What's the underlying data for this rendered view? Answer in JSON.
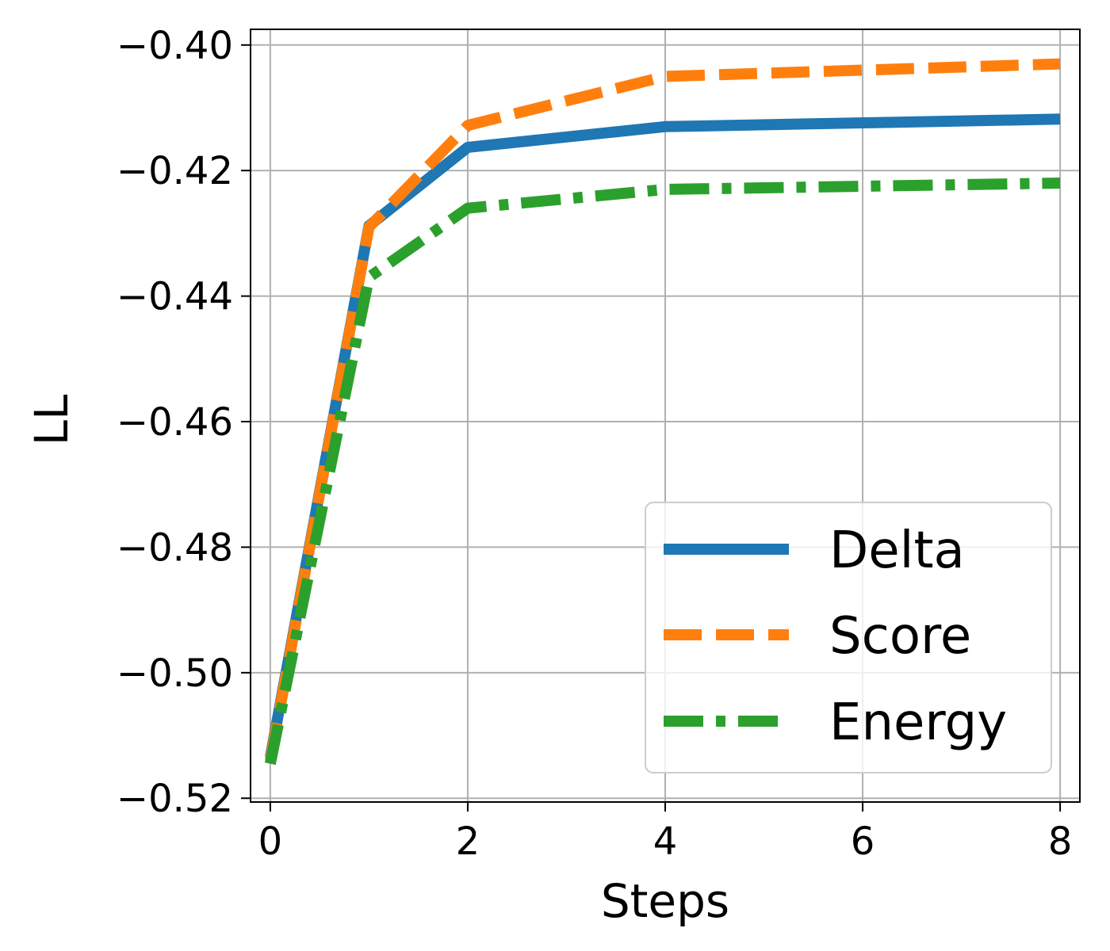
{
  "chart_data": {
    "type": "line",
    "title": "",
    "xlabel": "Steps",
    "ylabel": "LL",
    "xlim": [
      -0.2,
      8.2
    ],
    "ylim": [
      -0.5206,
      -0.3975
    ],
    "xticks": [
      0,
      2,
      4,
      6,
      8
    ],
    "yticks": [
      -0.52,
      -0.5,
      -0.48,
      -0.46,
      -0.44,
      -0.42,
      -0.4
    ],
    "x_tick_labels": [
      "0",
      "2",
      "4",
      "6",
      "8"
    ],
    "y_tick_labels": [
      "−0.52",
      "−0.50",
      "−0.48",
      "−0.46",
      "−0.44",
      "−0.42",
      "−0.40"
    ],
    "grid": true,
    "legend_position": "lower-right",
    "series": [
      {
        "name": "Delta",
        "color": "#1f77b4",
        "style": "solid",
        "x": [
          0,
          1,
          2,
          4,
          8
        ],
        "y": [
          -0.5135,
          -0.4288,
          -0.4163,
          -0.413,
          -0.4118
        ]
      },
      {
        "name": "Score",
        "color": "#ff7f0e",
        "style": "dashed",
        "x": [
          0,
          1,
          2,
          4,
          8
        ],
        "y": [
          -0.514,
          -0.429,
          -0.4128,
          -0.405,
          -0.403
        ]
      },
      {
        "name": "Energy",
        "color": "#2ca02c",
        "style": "dashdot",
        "x": [
          0,
          1,
          2,
          4,
          8
        ],
        "y": [
          -0.5145,
          -0.437,
          -0.426,
          -0.423,
          -0.422
        ]
      }
    ]
  }
}
